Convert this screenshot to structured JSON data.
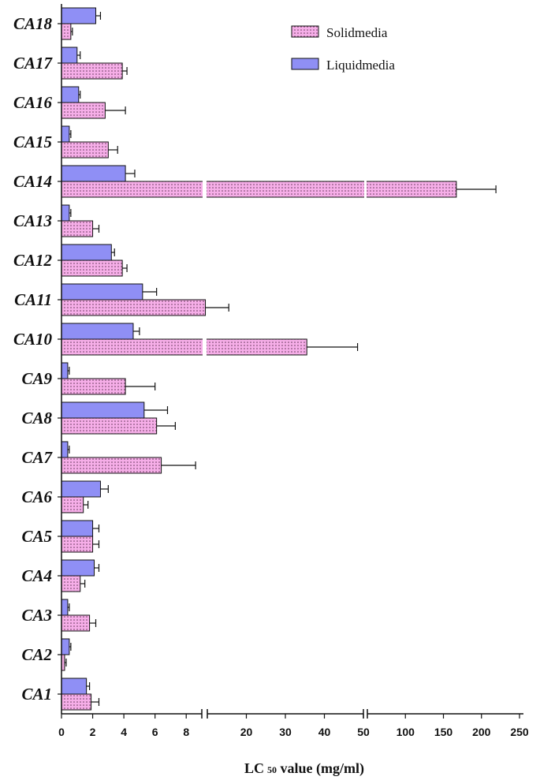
{
  "chart_data": {
    "type": "bar",
    "orientation": "horizontal",
    "xlabel": "LC 50 value (mg/ml)",
    "xlabel_main": "LC",
    "xlabel_sub": "50",
    "xlabel_rest": " value (mg/ml)",
    "x_axis": "broken (segments 0–9, 9–50, 50–250)",
    "ticks": [
      "0",
      "2",
      "4",
      "6",
      "8",
      "20",
      "30",
      "40",
      "50",
      "100",
      "150",
      "200",
      "250"
    ],
    "categories": [
      "CA1",
      "CA2",
      "CA3",
      "CA4",
      "CA5",
      "CA6",
      "CA7",
      "CA8",
      "CA9",
      "CA10",
      "CA11",
      "CA12",
      "CA13",
      "CA14",
      "CA15",
      "CA16",
      "CA17",
      "CA18"
    ],
    "series": [
      {
        "name": "Solid media",
        "color": "#f4a6e6",
        "pattern": "dotted",
        "values": [
          1.9,
          0.2,
          1.8,
          1.2,
          2.0,
          1.4,
          6.4,
          6.1,
          4.1,
          35.5,
          9.5,
          3.9,
          2.0,
          167,
          3.0,
          2.8,
          3.9,
          0.6
        ],
        "errors": [
          0.5,
          0.1,
          0.4,
          0.3,
          0.4,
          0.3,
          2.2,
          1.2,
          1.9,
          13.0,
          6.0,
          0.3,
          0.4,
          52,
          0.6,
          1.3,
          0.3,
          0.1
        ]
      },
      {
        "name": "Liquid media",
        "color": "#8f8ff5",
        "pattern": "solid",
        "values": [
          1.6,
          0.5,
          0.4,
          2.1,
          2.0,
          2.5,
          0.4,
          5.3,
          0.4,
          4.6,
          5.2,
          3.2,
          0.5,
          4.1,
          0.5,
          1.1,
          1.0,
          2.2
        ],
        "errors": [
          0.2,
          0.1,
          0.1,
          0.3,
          0.4,
          0.5,
          0.1,
          1.5,
          0.1,
          0.4,
          0.9,
          0.2,
          0.1,
          0.6,
          0.1,
          0.1,
          0.2,
          0.3
        ]
      }
    ],
    "legend": [
      "Solidmedia",
      "Liquidmedia"
    ],
    "legend_position": "top-right"
  }
}
